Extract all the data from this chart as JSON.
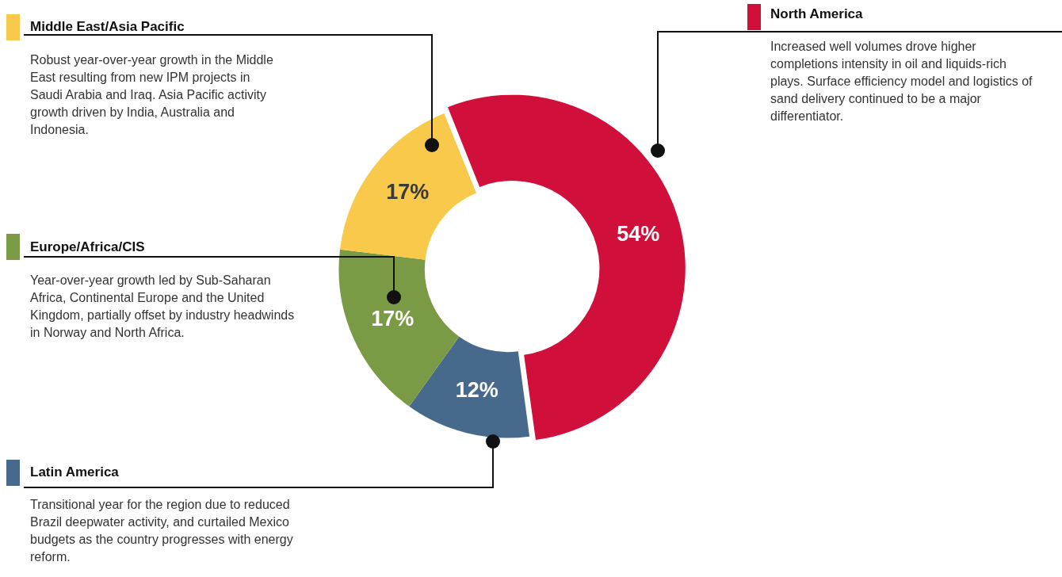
{
  "chart_data": {
    "type": "donut",
    "categories": [
      "North America",
      "Latin America",
      "Europe/Africa/CIS",
      "Middle East/Asia Pacific"
    ],
    "values": [
      54,
      12,
      17,
      17
    ],
    "colors": [
      "#d0103a",
      "#46698c",
      "#7a9a45",
      "#f8c94a"
    ],
    "value_labels": [
      "54%",
      "12%",
      "17%",
      "17%"
    ],
    "legend": "left",
    "annotations": [
      "Increased well volumes drove higher completions intensity in oil and liquids-rich plays. Surface efficiency model and logistics of sand delivery continued to be a major differentiator.",
      "Transitional year for the region due to reduced Brazil deepwater activity, and curtailed Mexico budgets as the country progresses with energy reform.",
      "Year-over-year growth led by Sub-Saharan Africa, Continental Europe and the United Kingdom, partially offset by industry headwinds in Norway and  North Africa.",
      "Robust year-over-year growth in the Middle East resulting from new IPM projects in Saudi Arabia and Iraq. Asia Pacific activity growth driven by India, Australia and Indonesia."
    ]
  }
}
